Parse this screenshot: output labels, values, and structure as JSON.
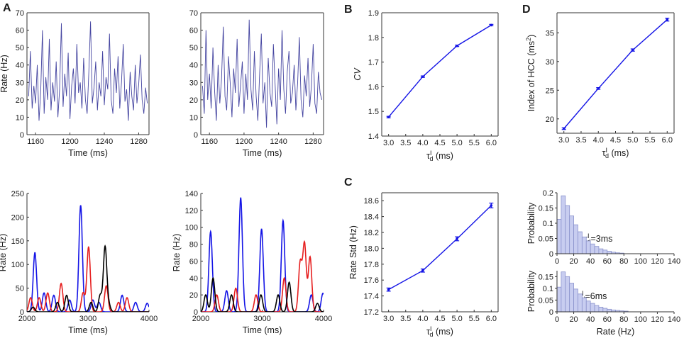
{
  "panel_labels": {
    "A": "A",
    "B": "B",
    "C": "C",
    "D": "D"
  },
  "colors": {
    "trace": "#4444a0",
    "blue": "#1414e6",
    "red": "#e61e1e",
    "black": "#000000",
    "hist_fill": "#c8cdf0",
    "hist_stroke": "#8a92cc",
    "axis": "#333333"
  },
  "chart_data": [
    {
      "id": "A_top_left",
      "type": "line",
      "xlabel": "Time (ms)",
      "ylabel": "Rate (Hz)",
      "xlim": [
        1150,
        1292
      ],
      "ylim": [
        0,
        70
      ],
      "xticks": [
        1160,
        1200,
        1240,
        1280
      ],
      "yticks": [
        0,
        10,
        20,
        30,
        40,
        50,
        60,
        70
      ],
      "series": [
        {
          "name": "population rate",
          "color": "#4444a0",
          "x": [
            1152,
            1154,
            1156,
            1158,
            1160,
            1162,
            1164,
            1166,
            1168,
            1170,
            1172,
            1174,
            1176,
            1178,
            1180,
            1182,
            1184,
            1186,
            1188,
            1190,
            1192,
            1194,
            1196,
            1198,
            1200,
            1202,
            1204,
            1206,
            1208,
            1210,
            1212,
            1214,
            1216,
            1218,
            1220,
            1222,
            1224,
            1226,
            1228,
            1230,
            1232,
            1234,
            1236,
            1238,
            1240,
            1242,
            1244,
            1246,
            1248,
            1250,
            1252,
            1254,
            1256,
            1258,
            1260,
            1262,
            1264,
            1266,
            1268,
            1270,
            1272,
            1274,
            1276,
            1278,
            1280,
            1282,
            1284,
            1286,
            1288,
            1290
          ],
          "y": [
            22,
            48,
            15,
            28,
            18,
            40,
            8,
            25,
            60,
            12,
            33,
            20,
            55,
            14,
            30,
            19,
            42,
            10,
            26,
            64,
            16,
            35,
            22,
            47,
            9,
            28,
            38,
            18,
            52,
            24,
            30,
            15,
            44,
            20,
            12,
            36,
            65,
            18,
            27,
            42,
            14,
            30,
            22,
            48,
            17,
            33,
            26,
            58,
            20,
            12,
            38,
            24,
            45,
            15,
            30,
            52,
            19,
            26,
            8,
            36,
            22,
            14,
            40,
            18,
            29,
            46,
            20,
            12,
            27,
            18
          ]
        }
      ]
    },
    {
      "id": "A_top_right",
      "type": "line",
      "xlabel": "Time (ms)",
      "ylabel": "",
      "xlim": [
        1150,
        1292
      ],
      "ylim": [
        0,
        70
      ],
      "xticks": [
        1160,
        1200,
        1240,
        1280
      ],
      "yticks": [
        0,
        10,
        20,
        30,
        40,
        50,
        60,
        70
      ],
      "series": [
        {
          "name": "population rate",
          "color": "#4444a0",
          "x": [
            1152,
            1154,
            1156,
            1158,
            1160,
            1162,
            1164,
            1166,
            1168,
            1170,
            1172,
            1174,
            1176,
            1178,
            1180,
            1182,
            1184,
            1186,
            1188,
            1190,
            1192,
            1194,
            1196,
            1198,
            1200,
            1202,
            1204,
            1206,
            1208,
            1210,
            1212,
            1214,
            1216,
            1218,
            1220,
            1222,
            1224,
            1226,
            1228,
            1230,
            1232,
            1234,
            1236,
            1238,
            1240,
            1242,
            1244,
            1246,
            1248,
            1250,
            1252,
            1254,
            1256,
            1258,
            1260,
            1262,
            1264,
            1266,
            1268,
            1270,
            1272,
            1274,
            1276,
            1278,
            1280,
            1282,
            1284,
            1286,
            1288,
            1290
          ],
          "y": [
            28,
            12,
            60,
            20,
            35,
            15,
            50,
            25,
            8,
            40,
            18,
            32,
            62,
            22,
            14,
            45,
            30,
            10,
            38,
            24,
            55,
            16,
            28,
            42,
            12,
            35,
            20,
            66,
            26,
            14,
            48,
            22,
            8,
            34,
            58,
            18,
            30,
            4,
            44,
            24,
            16,
            52,
            28,
            6,
            38,
            20,
            60,
            26,
            12,
            36,
            48,
            18,
            24,
            40,
            14,
            30,
            56,
            20,
            10,
            34,
            22,
            44,
            16,
            28,
            52,
            18,
            12,
            36,
            24,
            20
          ]
        }
      ]
    },
    {
      "id": "A_bottom_left",
      "type": "line",
      "xlabel": "Time (ms)",
      "ylabel": "Rate (Hz)",
      "xlim": [
        2000,
        4000
      ],
      "ylim": [
        0,
        250
      ],
      "xticks": [
        2000,
        3000,
        4000
      ],
      "yticks": [
        0,
        50,
        100,
        150,
        200,
        250
      ],
      "series": [
        {
          "name": "blue",
          "color": "#1414e6",
          "peaks": [
            [
              2130,
              125
            ],
            [
              2280,
              40
            ],
            [
              2440,
              35
            ],
            [
              2700,
              25
            ],
            [
              2880,
              225
            ],
            [
              3080,
              25
            ],
            [
              3180,
              20
            ],
            [
              3560,
              35
            ],
            [
              3780,
              20
            ],
            [
              3970,
              18
            ]
          ]
        },
        {
          "name": "red",
          "color": "#e61e1e",
          "peaks": [
            [
              2060,
              30
            ],
            [
              2200,
              30
            ],
            [
              2340,
              40
            ],
            [
              2560,
              60
            ],
            [
              2920,
              40
            ],
            [
              3010,
              137
            ],
            [
              3300,
              55
            ],
            [
              3500,
              20
            ],
            [
              3640,
              30
            ]
          ]
        },
        {
          "name": "black",
          "color": "#000000",
          "peaks": [
            [
              2100,
              10
            ],
            [
              2500,
              20
            ],
            [
              2650,
              35
            ],
            [
              3050,
              20
            ],
            [
              3200,
              35
            ],
            [
              3280,
              137
            ],
            [
              3340,
              15
            ]
          ]
        }
      ]
    },
    {
      "id": "A_bottom_right",
      "type": "line",
      "xlabel": "Time (ms)",
      "ylabel": "Rate (Hz)",
      "xlim": [
        2000,
        4000
      ],
      "ylim": [
        0,
        140
      ],
      "xticks": [
        2000,
        3000,
        4000
      ],
      "yticks": [
        0,
        20,
        40,
        60,
        80,
        100,
        120,
        140
      ],
      "series": [
        {
          "name": "blue",
          "color": "#1414e6",
          "peaks": [
            [
              2160,
              95
            ],
            [
              2420,
              25
            ],
            [
              2650,
              135
            ],
            [
              2990,
              98
            ],
            [
              3340,
              108
            ],
            [
              3800,
              20
            ],
            [
              3990,
              22
            ]
          ]
        },
        {
          "name": "red",
          "color": "#e61e1e",
          "peaks": [
            [
              2260,
              20
            ],
            [
              2570,
              28
            ],
            [
              2900,
              20
            ],
            [
              3360,
              40
            ],
            [
              3620,
              58
            ],
            [
              3690,
              80
            ],
            [
              3780,
              65
            ]
          ]
        },
        {
          "name": "black",
          "color": "#000000",
          "peaks": [
            [
              2080,
              20
            ],
            [
              2200,
              40
            ],
            [
              2500,
              20
            ],
            [
              2980,
              20
            ],
            [
              3260,
              20
            ],
            [
              3440,
              35
            ],
            [
              3900,
              10
            ]
          ]
        }
      ]
    },
    {
      "id": "B",
      "type": "line",
      "xlabel": "τdI (ms)",
      "ylabel": "CV",
      "xlim": [
        2.8,
        6.2
      ],
      "ylim": [
        1.4,
        1.9
      ],
      "xticks": [
        3.0,
        3.5,
        4.0,
        4.5,
        5.0,
        5.5,
        6.0
      ],
      "yticks": [
        1.4,
        1.5,
        1.6,
        1.7,
        1.8,
        1.9
      ],
      "series": [
        {
          "name": "CV",
          "color": "#1414e6",
          "x": [
            3.0,
            4.0,
            5.0,
            6.0
          ],
          "y": [
            1.477,
            1.641,
            1.766,
            1.85
          ],
          "err": [
            0.003,
            0.003,
            0.003,
            0.003
          ]
        }
      ]
    },
    {
      "id": "C",
      "type": "line",
      "xlabel": "τdI (ms)",
      "ylabel": "Rate Std (Hz)",
      "xlim": [
        2.8,
        6.2
      ],
      "ylim": [
        17.2,
        18.7
      ],
      "xticks": [
        3.0,
        3.5,
        4.0,
        4.5,
        5.0,
        5.5,
        6.0
      ],
      "yticks": [
        17.2,
        17.4,
        17.6,
        17.8,
        18.0,
        18.2,
        18.4,
        18.6
      ],
      "series": [
        {
          "name": "Rate Std",
          "color": "#1414e6",
          "x": [
            3.0,
            4.0,
            5.0,
            6.0
          ],
          "y": [
            17.48,
            17.72,
            18.12,
            18.54
          ],
          "err": [
            0.02,
            0.02,
            0.025,
            0.03
          ]
        }
      ]
    },
    {
      "id": "D",
      "type": "line",
      "xlabel": "τdI (ms)",
      "ylabel": "Index of HCC (ms²)",
      "xlim": [
        2.8,
        6.2
      ],
      "ylim": [
        17.5,
        38.5
      ],
      "xticks": [
        3.0,
        3.5,
        4.0,
        4.5,
        5.0,
        5.5,
        6.0
      ],
      "yticks": [
        20,
        25,
        30,
        35
      ],
      "series": [
        {
          "name": "Index of HCC",
          "color": "#1414e6",
          "x": [
            3.0,
            4.0,
            5.0,
            6.0
          ],
          "y": [
            18.3,
            25.3,
            32.0,
            37.3
          ],
          "err": [
            0.15,
            0.15,
            0.2,
            0.25
          ]
        }
      ]
    },
    {
      "id": "D_hist_3ms",
      "type": "bar",
      "annotation": "τdI=3ms",
      "xlabel": "",
      "ylabel": "Probability",
      "xlim": [
        0,
        140
      ],
      "ylim": [
        0,
        0.2
      ],
      "xticks": [
        0,
        20,
        40,
        60,
        80,
        100,
        120,
        140
      ],
      "yticks": [
        0,
        0.05,
        0.1,
        0.15,
        0.2
      ],
      "bin_width": 5,
      "values": [
        0.113,
        0.19,
        0.158,
        0.124,
        0.095,
        0.072,
        0.055,
        0.042,
        0.032,
        0.024,
        0.016,
        0.012,
        0.008,
        0.005,
        0.003,
        0.002
      ]
    },
    {
      "id": "D_hist_6ms",
      "type": "bar",
      "annotation": "τdI=6ms",
      "xlabel": "Rate (Hz)",
      "ylabel": "Probability",
      "xlim": [
        0,
        140
      ],
      "ylim": [
        0,
        0.175
      ],
      "xticks": [
        0,
        20,
        40,
        60,
        80,
        100,
        120,
        140
      ],
      "yticks": [
        0,
        0.05,
        0.1,
        0.15
      ],
      "bin_width": 5,
      "values": [
        0.105,
        0.17,
        0.15,
        0.122,
        0.097,
        0.076,
        0.06,
        0.046,
        0.036,
        0.027,
        0.02,
        0.015,
        0.011,
        0.008,
        0.006,
        0.004,
        0.003
      ]
    }
  ]
}
